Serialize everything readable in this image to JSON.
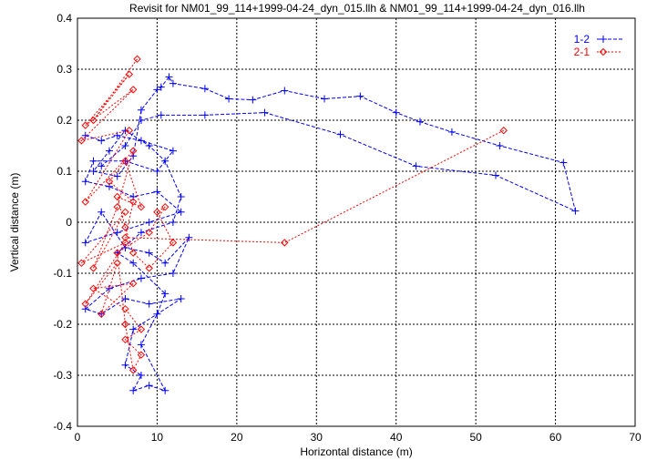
{
  "chart_data": {
    "type": "line",
    "title": "Revisit for NM01_99_114+1999-04-24_dyn_015.llh & NM01_99_114+1999-04-24_dyn_016.llh",
    "xlabel": "Horizontal distance (m)",
    "ylabel": "Vertical distance (m)",
    "xlim": [
      0,
      70
    ],
    "ylim": [
      -0.4,
      0.4
    ],
    "xticks": [
      0,
      10,
      20,
      30,
      40,
      50,
      60,
      70
    ],
    "yticks": [
      -0.4,
      -0.3,
      -0.2,
      -0.1,
      0,
      0.1,
      0.2,
      0.3,
      0.4
    ],
    "ytick_labels": [
      "-0.4",
      "-0.3",
      "-0.2",
      "-0.1",
      "0",
      "0.1",
      "0.2",
      "0.3",
      "0.4"
    ],
    "grid": true,
    "legend_position": "top-right",
    "series": [
      {
        "name": "1-2",
        "color": "#0000ff",
        "marker": "plus",
        "points": [
          [
            1,
            0.17
          ],
          [
            3,
            0.16
          ],
          [
            5,
            0.17
          ],
          [
            8,
            0.16
          ],
          [
            12,
            0.14
          ],
          [
            10,
            0.1
          ],
          [
            6,
            0.12
          ],
          [
            2,
            0.12
          ],
          [
            1,
            0.08
          ],
          [
            4,
            0.07
          ],
          [
            7,
            0.05
          ],
          [
            10,
            0.06
          ],
          [
            13,
            0.02
          ],
          [
            9,
            0.0
          ],
          [
            5,
            -0.02
          ],
          [
            1,
            -0.04
          ],
          [
            3,
            0.02
          ],
          [
            6,
            -0.05
          ],
          [
            9,
            -0.06
          ],
          [
            11,
            -0.08
          ],
          [
            14,
            -0.03
          ],
          [
            12,
            -0.1
          ],
          [
            8,
            -0.11
          ],
          [
            4,
            -0.13
          ],
          [
            1,
            -0.17
          ],
          [
            3,
            -0.18
          ],
          [
            6,
            -0.15
          ],
          [
            9,
            -0.16
          ],
          [
            13,
            -0.15
          ],
          [
            7,
            -0.21
          ],
          [
            6,
            -0.28
          ],
          [
            8,
            -0.3
          ],
          [
            7,
            -0.33
          ],
          [
            9,
            -0.32
          ],
          [
            11,
            -0.33
          ],
          [
            8,
            -0.24
          ],
          [
            10,
            -0.18
          ],
          [
            11,
            -0.14
          ],
          [
            7,
            -0.08
          ],
          [
            5,
            -0.06
          ],
          [
            8,
            -0.02
          ],
          [
            12,
            0.0
          ],
          [
            13,
            0.05
          ],
          [
            11,
            0.12
          ],
          [
            9,
            0.15
          ],
          [
            6,
            0.18
          ],
          [
            4,
            0.14
          ],
          [
            2,
            0.1
          ],
          [
            5,
            0.09
          ],
          [
            7,
            0.13
          ],
          [
            8,
            0.22
          ],
          [
            10,
            0.26
          ],
          [
            10.5,
            0.265
          ],
          [
            11.5,
            0.285
          ],
          [
            12,
            0.272
          ],
          [
            16,
            0.262
          ],
          [
            19,
            0.242
          ],
          [
            22,
            0.24
          ],
          [
            26,
            0.258
          ],
          [
            31,
            0.242
          ],
          [
            35.5,
            0.247
          ],
          [
            40,
            0.215
          ],
          [
            43,
            0.197
          ],
          [
            47,
            0.177
          ],
          [
            53,
            0.15
          ],
          [
            61,
            0.117
          ],
          [
            62.5,
            0.022
          ],
          [
            52.5,
            0.092
          ],
          [
            42.5,
            0.11
          ],
          [
            33,
            0.172
          ],
          [
            23.5,
            0.215
          ],
          [
            16,
            0.21
          ],
          [
            10.5,
            0.21
          ],
          [
            8,
            0.2
          ],
          [
            6,
            0.15
          ],
          [
            3,
            0.11
          ]
        ]
      },
      {
        "name": "2-1",
        "color": "#ff0000",
        "marker": "diamond",
        "points": [
          [
            7.5,
            0.32
          ],
          [
            2,
            0.2
          ],
          [
            6.5,
            0.29
          ],
          [
            1,
            0.19
          ],
          [
            7,
            0.26
          ],
          [
            0.5,
            0.16
          ],
          [
            6.5,
            0.18
          ],
          [
            1,
            0.04
          ],
          [
            7,
            0.14
          ],
          [
            5,
            0.03
          ],
          [
            2,
            -0.09
          ],
          [
            6,
            0.02
          ],
          [
            0.5,
            -0.08
          ],
          [
            6,
            -0.04
          ],
          [
            1,
            -0.16
          ],
          [
            5,
            -0.08
          ],
          [
            3,
            -0.18
          ],
          [
            7,
            -0.12
          ],
          [
            2,
            -0.13
          ],
          [
            6,
            -0.17
          ],
          [
            8,
            -0.21
          ],
          [
            6,
            -0.23
          ],
          [
            8,
            -0.26
          ],
          [
            7,
            -0.29
          ],
          [
            6,
            -0.2
          ],
          [
            5,
            -0.06
          ],
          [
            9,
            -0.02
          ],
          [
            11,
            0.03
          ],
          [
            10,
            0.02
          ],
          [
            12,
            -0.04
          ],
          [
            9,
            -0.09
          ],
          [
            7,
            -0.06
          ],
          [
            6,
            -0.01
          ],
          [
            5,
            0.05
          ],
          [
            8,
            0.03
          ],
          [
            6,
            0.12
          ],
          [
            4,
            0.08
          ],
          [
            7,
            0.04
          ],
          [
            6,
            -0.03
          ],
          [
            26,
            -0.04
          ],
          [
            53.5,
            0.18
          ]
        ]
      }
    ]
  }
}
